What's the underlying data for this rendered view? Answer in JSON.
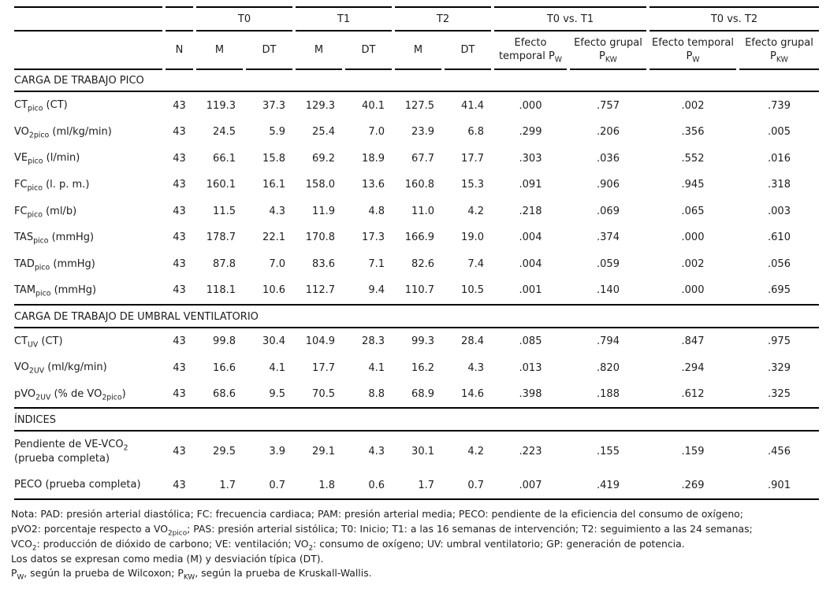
{
  "table": {
    "header": {
      "groups": [
        {
          "label": "",
          "span": 1
        },
        {
          "label": "",
          "span": 1
        },
        {
          "label": "T0",
          "span": 2
        },
        {
          "label": "T1",
          "span": 2
        },
        {
          "label": "T2",
          "span": 2
        },
        {
          "label": "T0 vs. T1",
          "span": 2
        },
        {
          "label": "T0 vs. T2",
          "span": 2
        }
      ],
      "columns": [
        "N",
        "M",
        "DT",
        "M",
        "DT",
        "M",
        "DT",
        "Efecto temporal P~W~",
        "Efecto grupal P~KW~",
        "Efecto temporal P~W~",
        "Efecto grupal P~KW~"
      ]
    },
    "sections": [
      {
        "title": "CARGA DE TRABAJO PICO",
        "rows": [
          {
            "label": "CT~pico~ (CT)",
            "values": [
              "43",
              "119.3",
              "37.3",
              "129.3",
              "40.1",
              "127.5",
              "41.4",
              ".000",
              ".757",
              ".002",
              ".739"
            ]
          },
          {
            "label": "VO~2pico~ (ml/kg/min)",
            "values": [
              "43",
              "24.5",
              "5.9",
              "25.4",
              "7.0",
              "23.9",
              "6.8",
              ".299",
              ".206",
              ".356",
              ".005"
            ]
          },
          {
            "label": "VE~pico~ (l/min)",
            "values": [
              "43",
              "66.1",
              "15.8",
              "69.2",
              "18.9",
              "67.7",
              "17.7",
              ".303",
              ".036",
              ".552",
              ".016"
            ]
          },
          {
            "label": "FC~pico~ (l. p. m.)",
            "values": [
              "43",
              "160.1",
              "16.1",
              "158.0",
              "13.6",
              "160.8",
              "15.3",
              ".091",
              ".906",
              ".945",
              ".318"
            ]
          },
          {
            "label": "FC~pico~ (ml/b)",
            "values": [
              "43",
              "11.5",
              "4.3",
              "11.9",
              "4.8",
              "11.0",
              "4.2",
              ".218",
              ".069",
              ".065",
              ".003"
            ]
          },
          {
            "label": "TAS~pico~ (mmHg)",
            "values": [
              "43",
              "178.7",
              "22.1",
              "170.8",
              "17.3",
              "166.9",
              "19.0",
              ".004",
              ".374",
              ".000",
              ".610"
            ]
          },
          {
            "label": "TAD~pico~ (mmHg)",
            "values": [
              "43",
              "87.8",
              "7.0",
              "83.6",
              "7.1",
              "82.6",
              "7.4",
              ".004",
              ".059",
              ".002",
              ".056"
            ]
          },
          {
            "label": "TAM~pico~ (mmHg)",
            "values": [
              "43",
              "118.1",
              "10.6",
              "112.7",
              "9.4",
              "110.7",
              "10.5",
              ".001",
              ".140",
              ".000",
              ".695"
            ]
          }
        ]
      },
      {
        "title": "CARGA DE TRABAJO DE UMBRAL VENTILATORIO",
        "rows": [
          {
            "label": "CT~UV~ (CT)",
            "values": [
              "43",
              "99.8",
              "30.4",
              "104.9",
              "28.3",
              "99.3",
              "28.4",
              ".085",
              ".794",
              ".847",
              ".975"
            ]
          },
          {
            "label": "VO~2UV~ (ml/kg/min)",
            "values": [
              "43",
              "16.6",
              "4.1",
              "17.7",
              "4.1",
              "16.2",
              "4.3",
              ".013",
              ".820",
              ".294",
              ".329"
            ]
          },
          {
            "label": "pVO~2UV~ (% de VO~2pico~)",
            "values": [
              "43",
              "68.6",
              "9.5",
              "70.5",
              "8.8",
              "68.9",
              "14.6",
              ".398",
              ".188",
              ".612",
              ".325"
            ]
          }
        ]
      },
      {
        "title": "ÍNDICES",
        "rows": [
          {
            "label": "Pendiente de VE-VCO~2~ (prueba completa)",
            "values": [
              "43",
              "29.5",
              "3.9",
              "29.1",
              "4.3",
              "30.1",
              "4.2",
              ".223",
              ".155",
              ".159",
              ".456"
            ]
          },
          {
            "label": "PECO (prueba completa)",
            "values": [
              "43",
              "1.7",
              "0.7",
              "1.8",
              "0.6",
              "1.7",
              "0.7",
              ".007",
              ".419",
              ".269",
              ".901"
            ]
          }
        ]
      }
    ]
  },
  "footnotes": [
    "Nota: PAD: presión arterial diastólica; FC: frecuencia cardiaca; PAM: presión arterial media; PECO: pendiente de la eficiencia del consumo de oxígeno;",
    "pVO2: porcentaje respecto a VO~2pico~; PAS: presión arterial sistólica; T0: Inicio; T1: a las 16 semanas de intervención; T2: seguimiento a las 24 semanas;",
    "VCO~2~: producción de dióxido de carbono; VE: ventilación; VO~2~: consumo de oxígeno; UV: umbral ventilatorio; GP: generación de potencia.",
    "Los datos se expresan como media (M) y desviación típica (DT).",
    "P~W~, según la prueba de Wilcoxon; P~KW~, según la prueba de Kruskall-Wallis."
  ]
}
